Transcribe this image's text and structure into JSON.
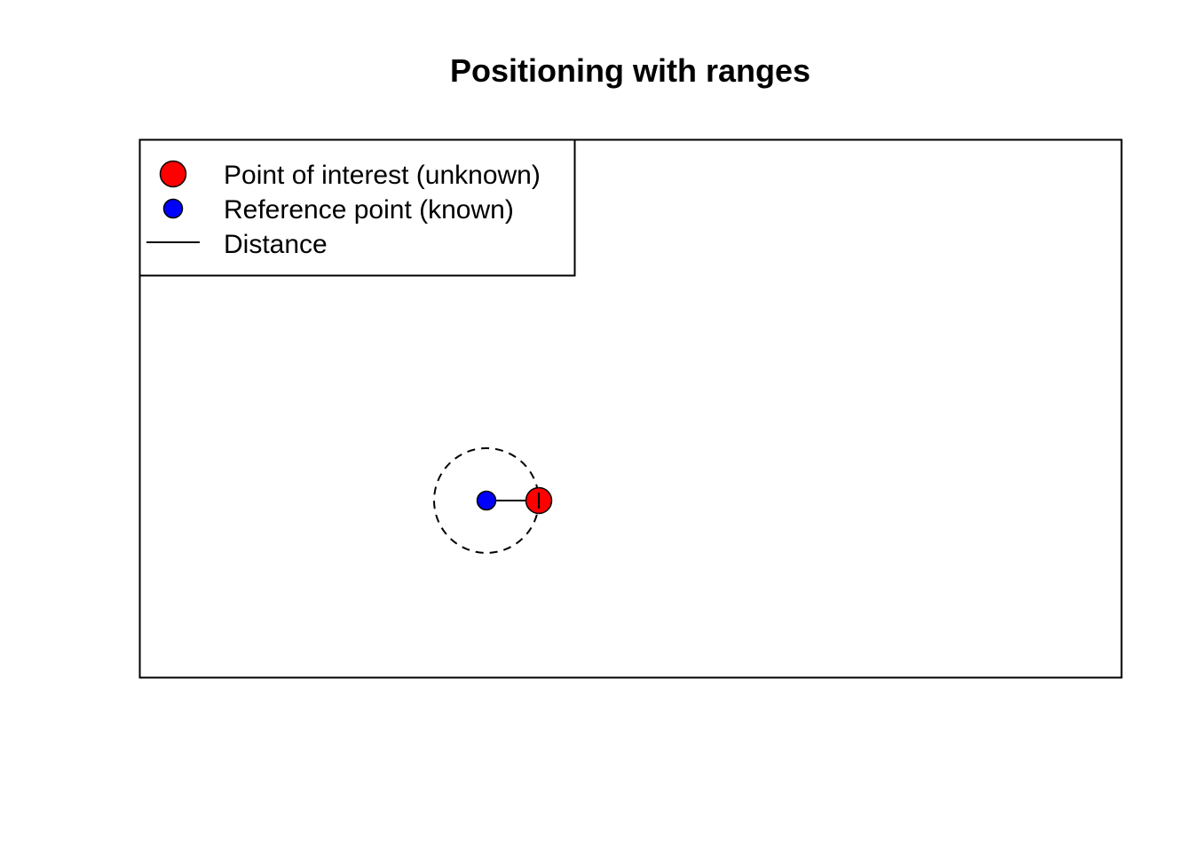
{
  "title": "Positioning with ranges",
  "legend": {
    "placement": "top-left",
    "items": [
      {
        "label": "Point of interest (unknown)",
        "symbol": "large-filled-circle",
        "color": "#ff0000"
      },
      {
        "label": "Reference point (known)",
        "symbol": "small-filled-circle",
        "color": "#0000ff"
      },
      {
        "label": "Distance",
        "symbol": "line",
        "color": "#000000"
      }
    ]
  },
  "diagram": {
    "reference_point": {
      "x": 0,
      "y": 0,
      "color": "#0000ff"
    },
    "point_of_interest": {
      "x": 1,
      "y": 0,
      "color": "#ff0000"
    },
    "range_circle": {
      "center": "reference_point",
      "radius": 1,
      "line_style": "dashed"
    },
    "distance_line": {
      "from": "reference_point",
      "to": "point_of_interest",
      "end_marker": "bar"
    }
  },
  "colors": {
    "poi": "#ff0000",
    "reference": "#0000ff",
    "stroke": "#000000",
    "background": "#ffffff"
  }
}
